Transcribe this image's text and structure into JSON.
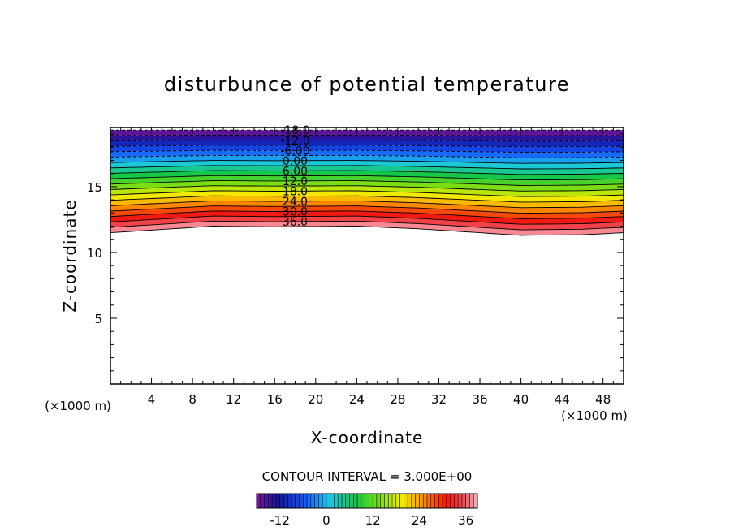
{
  "chart_data": {
    "type": "contour",
    "title": "disturbunce of potential temperature",
    "xlabel": "X-coordinate",
    "ylabel": "Z-coordinate",
    "x_unit": "(×1000 m)",
    "y_unit": "(×1000 m)",
    "xlim": [
      0,
      50
    ],
    "ylim": [
      0,
      19.5
    ],
    "x_ticks": [
      4,
      8,
      12,
      16,
      20,
      24,
      28,
      32,
      36,
      40,
      44,
      48
    ],
    "y_ticks": [
      5,
      10,
      15
    ],
    "contour_interval_label": "CONTOUR INTERVAL = 3.000E+00",
    "contour_interval": 3.0,
    "level_min": -18,
    "level_max": 39,
    "contour_labels": [
      "-18.0",
      "-12.0",
      "-6.00",
      "0.00",
      "6.00",
      "12.0",
      "18.0",
      "24.0",
      "30.0",
      "36.0"
    ],
    "negative_dashed": true,
    "colorbar": {
      "range": [
        -18,
        39
      ],
      "tick_labels": [
        "-12",
        "0",
        "12",
        "24",
        "36"
      ]
    },
    "field_description_levels_at_x_reference": {
      "top_z": 19.3,
      "bottom_z_profile_x": [
        0,
        4,
        10,
        16,
        24,
        30,
        36,
        40,
        46,
        50
      ],
      "bottom_z_profile_z": [
        11.5,
        11.7,
        12.0,
        11.95,
        12.0,
        11.8,
        11.5,
        11.3,
        11.35,
        11.5
      ]
    }
  }
}
